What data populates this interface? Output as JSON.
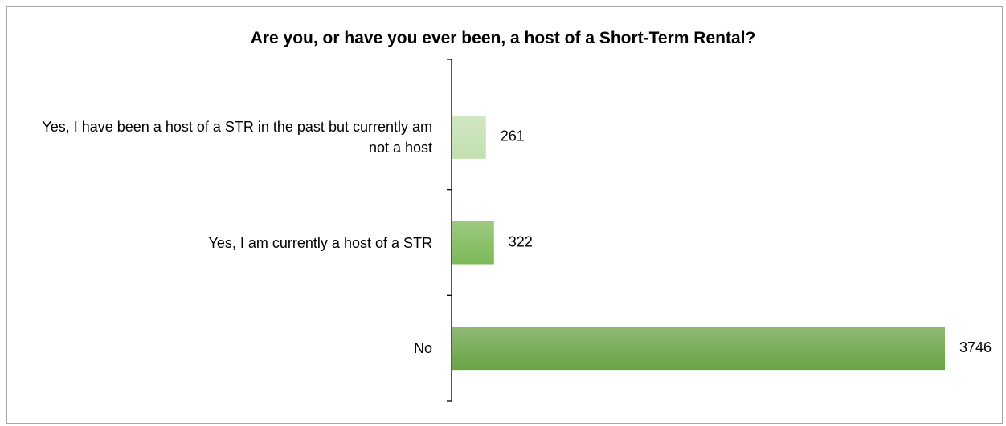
{
  "chart_data": {
    "type": "barh",
    "title": "Are you, or have you ever been, a host of a Short-Term Rental?",
    "categories": [
      "Yes, I have been a host of a STR in the past but currently am not a host",
      "Yes, I am currently a host of a STR",
      "No"
    ],
    "values": [
      261,
      322,
      3746
    ],
    "colors": [
      "#c3dfb0",
      "#7cb857",
      "#6aa346"
    ]
  }
}
